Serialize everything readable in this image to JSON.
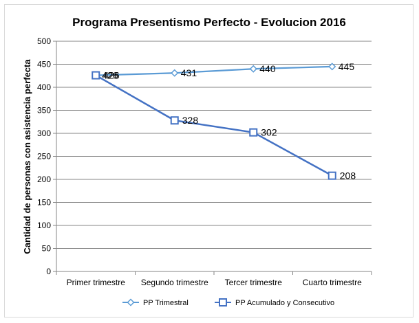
{
  "chart_data": {
    "type": "line",
    "title": "Programa Presentismo Perfecto - Evolucion 2016",
    "xlabel": "",
    "ylabel": "Cantidad de personas con asistencia perfecta",
    "ylim": [
      0,
      500
    ],
    "yticks": [
      0,
      50,
      100,
      150,
      200,
      250,
      300,
      350,
      400,
      450,
      500
    ],
    "categories": [
      "Primer trimestre",
      "Segundo trimestre",
      "Tercer trimestre",
      "Cuarto trimestre"
    ],
    "grid": true,
    "legend_position": "bottom",
    "series": [
      {
        "name": "PP Trimestral",
        "values": [
          426,
          431,
          440,
          445
        ],
        "color": "#5b9bd5",
        "marker": "diamond"
      },
      {
        "name": "PP Acumulado y Consecutivo",
        "values": [
          426,
          328,
          302,
          208
        ],
        "color": "#4472c4",
        "marker": "square"
      }
    ]
  }
}
